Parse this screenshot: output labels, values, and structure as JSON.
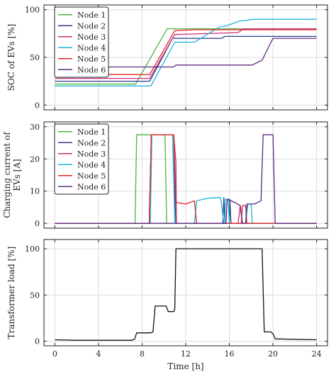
{
  "chart_data": [
    {
      "type": "line",
      "ylabel": "SOC of EVs [%]",
      "xlim": [
        -1,
        25
      ],
      "ylim": [
        -5,
        105
      ],
      "yticks": [
        0,
        50,
        100
      ],
      "xticks": [
        0,
        4,
        8,
        12,
        16,
        20,
        24
      ],
      "grid": true,
      "legend": "top-left",
      "series": [
        {
          "name": "Node 1",
          "color": "#4db33d",
          "points": [
            [
              0,
              22
            ],
            [
              7.4,
              22
            ],
            [
              10.3,
              80
            ],
            [
              24,
              80
            ]
          ]
        },
        {
          "name": "Node 2",
          "color": "#2b3d8f",
          "points": [
            [
              0,
              25
            ],
            [
              8.7,
              25
            ],
            [
              10.8,
              70
            ],
            [
              15.3,
              70
            ],
            [
              15.6,
              72
            ],
            [
              24,
              72
            ]
          ]
        },
        {
          "name": "Node 3",
          "color": "#cc2a7a",
          "points": [
            [
              0,
              28
            ],
            [
              8.7,
              28
            ],
            [
              11,
              74
            ],
            [
              16.8,
              76
            ],
            [
              17.3,
              80
            ],
            [
              24,
              80
            ]
          ]
        },
        {
          "name": "Node 4",
          "color": "#1ab5d6",
          "points": [
            [
              0,
              20
            ],
            [
              8.8,
              20
            ],
            [
              11,
              66
            ],
            [
              12.8,
              66
            ],
            [
              15.1,
              82
            ],
            [
              15.7,
              83
            ],
            [
              16.9,
              88
            ],
            [
              17.7,
              89
            ],
            [
              18.2,
              90
            ],
            [
              24,
              90
            ]
          ]
        },
        {
          "name": "Node 5",
          "color": "#e02525",
          "points": [
            [
              0,
              32
            ],
            [
              8.7,
              32
            ],
            [
              11,
              78
            ],
            [
              12.8,
              79
            ],
            [
              24,
              79
            ]
          ]
        },
        {
          "name": "Node 6",
          "color": "#5e2a7d",
          "points": [
            [
              0,
              40
            ],
            [
              10.9,
              40
            ],
            [
              11.1,
              42
            ],
            [
              18.1,
              42
            ],
            [
              19,
              47
            ],
            [
              20,
              70
            ],
            [
              24,
              70
            ]
          ]
        }
      ]
    },
    {
      "type": "line",
      "ylabel": "Charging current of EVs [A]",
      "xlim": [
        -1,
        25
      ],
      "ylim": [
        -1.5,
        31.5
      ],
      "yticks": [
        0,
        10,
        20,
        30
      ],
      "xticks": [
        0,
        4,
        8,
        12,
        16,
        20,
        24
      ],
      "grid": true,
      "legend": "top-left",
      "series": [
        {
          "name": "Node 1",
          "color": "#4db33d",
          "points": [
            [
              0,
              0
            ],
            [
              7.35,
              0
            ],
            [
              7.5,
              27.5
            ],
            [
              10.1,
              27.5
            ],
            [
              10.25,
              0
            ],
            [
              24,
              0
            ]
          ]
        },
        {
          "name": "Node 2",
          "color": "#2b3d8f",
          "points": [
            [
              0,
              0
            ],
            [
              8.65,
              0
            ],
            [
              8.85,
              27.5
            ],
            [
              10.8,
              27.5
            ],
            [
              11.1,
              0
            ],
            [
              15.4,
              0
            ],
            [
              15.5,
              8
            ],
            [
              15.6,
              0
            ],
            [
              16,
              0
            ],
            [
              16.05,
              7.5
            ],
            [
              16.15,
              0
            ],
            [
              24,
              0
            ]
          ]
        },
        {
          "name": "Node 3",
          "color": "#cc2a7a",
          "points": [
            [
              0,
              0
            ],
            [
              8.65,
              0
            ],
            [
              8.85,
              27.5
            ],
            [
              10.9,
              27.5
            ],
            [
              11.1,
              19
            ],
            [
              11.15,
              0
            ],
            [
              16.8,
              0
            ],
            [
              17,
              5.5
            ],
            [
              17.2,
              0
            ],
            [
              24,
              0
            ]
          ]
        },
        {
          "name": "Node 4",
          "color": "#1ab5d6",
          "points": [
            [
              0,
              0
            ],
            [
              8.75,
              0
            ],
            [
              8.9,
              27.5
            ],
            [
              10.8,
              27.5
            ],
            [
              11,
              0
            ],
            [
              12.8,
              0
            ],
            [
              13,
              7
            ],
            [
              14,
              7.8
            ],
            [
              15.2,
              8
            ],
            [
              15.5,
              0
            ],
            [
              15.6,
              0
            ],
            [
              15.65,
              7.5
            ],
            [
              15.9,
              7.5
            ],
            [
              16,
              0
            ],
            [
              17.5,
              0
            ],
            [
              17.7,
              6
            ],
            [
              18,
              6
            ],
            [
              18.1,
              0
            ],
            [
              24,
              0
            ]
          ]
        },
        {
          "name": "Node 5",
          "color": "#e02525",
          "points": [
            [
              0,
              0
            ],
            [
              8.65,
              0
            ],
            [
              8.85,
              27.5
            ],
            [
              10.9,
              27.5
            ],
            [
              11.1,
              6.5
            ],
            [
              12,
              6
            ],
            [
              12.8,
              7
            ],
            [
              13,
              0
            ],
            [
              17.1,
              0
            ],
            [
              17.2,
              5.5
            ],
            [
              17.5,
              5.5
            ],
            [
              17.6,
              0
            ],
            [
              24,
              0
            ]
          ]
        },
        {
          "name": "Node 6",
          "color": "#5e2a7d",
          "points": [
            [
              0,
              0
            ],
            [
              15.7,
              0
            ],
            [
              15.8,
              7.5
            ],
            [
              16.5,
              6.5
            ],
            [
              17,
              5.5
            ],
            [
              17.2,
              0
            ],
            [
              17.5,
              0
            ],
            [
              17.6,
              6
            ],
            [
              18.1,
              6
            ],
            [
              18.3,
              6
            ],
            [
              18.9,
              7
            ],
            [
              19.1,
              27.5
            ],
            [
              20,
              27.5
            ],
            [
              20.2,
              0
            ],
            [
              24,
              0
            ]
          ]
        }
      ]
    },
    {
      "type": "line",
      "ylabel": "Transformer load [%]",
      "xlabel": "Time [h]",
      "xlim": [
        -1,
        25
      ],
      "ylim": [
        -5,
        110
      ],
      "yticks": [
        0,
        50,
        100
      ],
      "xticks": [
        0,
        4,
        8,
        12,
        16,
        20,
        24
      ],
      "grid": true,
      "series": [
        {
          "color": "#111111",
          "points": [
            [
              0,
              1.5
            ],
            [
              2,
              1
            ],
            [
              7,
              1
            ],
            [
              7.3,
              2
            ],
            [
              7.5,
              9
            ],
            [
              8.8,
              9
            ],
            [
              9,
              10
            ],
            [
              9.2,
              38
            ],
            [
              10.2,
              38
            ],
            [
              10.4,
              32
            ],
            [
              10.9,
              32
            ],
            [
              11,
              35
            ],
            [
              11.1,
              100
            ],
            [
              19,
              100
            ],
            [
              19.2,
              10
            ],
            [
              19.8,
              10
            ],
            [
              20,
              8
            ],
            [
              20.2,
              2.5
            ],
            [
              24,
              1.5
            ]
          ]
        }
      ]
    }
  ]
}
